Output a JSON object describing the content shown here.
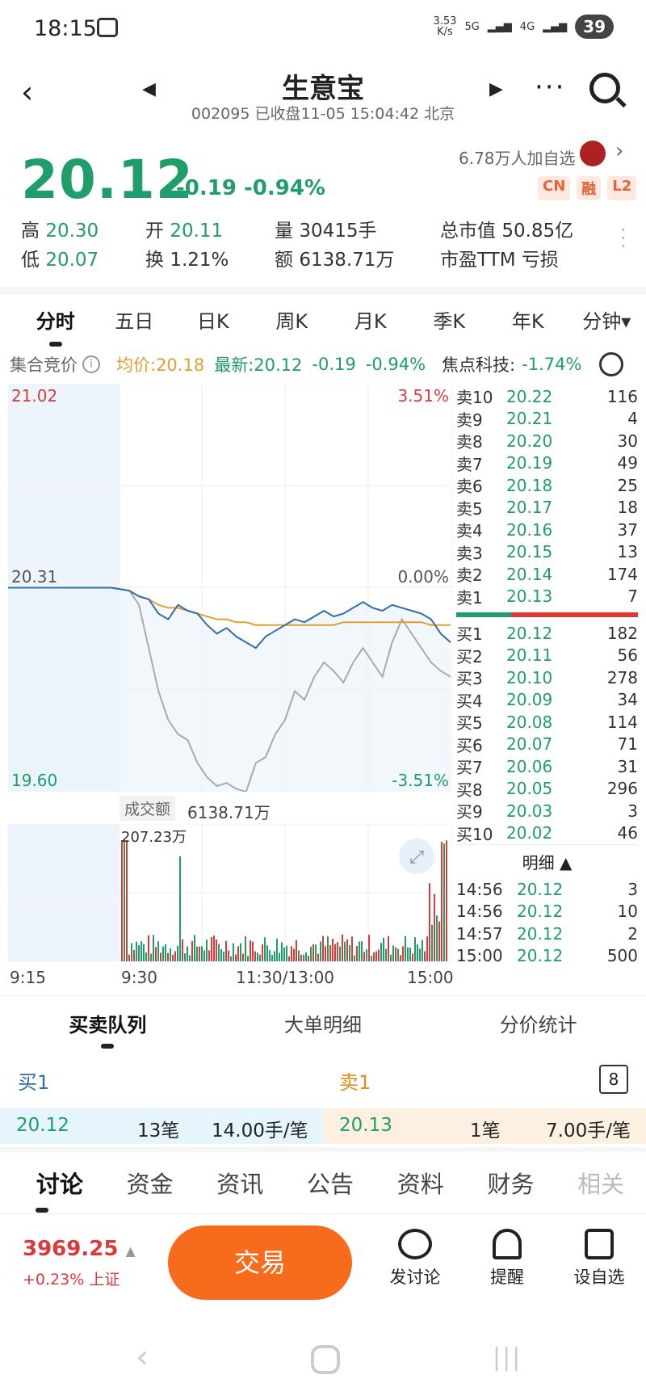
{
  "status": {
    "time": "18:15",
    "speed": "3.53\nK/s",
    "net1": "5G",
    "net2": "4G",
    "battery": "39"
  },
  "header": {
    "title": "生意宝",
    "subtitle": "002095 已收盘11-05 15:04:42 北京"
  },
  "quote": {
    "price": "20.12",
    "change": "-0.19 -0.94%",
    "followers": "6.78万人加自选",
    "badges": [
      "CN",
      "融",
      "L2"
    ],
    "stats": [
      {
        "k": "高",
        "v": "20.30"
      },
      {
        "k": "开",
        "v": "20.11"
      },
      {
        "k": "量",
        "v": "30415手"
      },
      {
        "k": "总市值",
        "v": "50.85亿"
      },
      {
        "k": "低",
        "v": "20.07"
      },
      {
        "k": "换",
        "v": "1.21%"
      },
      {
        "k": "额",
        "v": "6138.71万"
      },
      {
        "k": "市盈TTM",
        "v": "亏损"
      }
    ]
  },
  "tabs": [
    "分时",
    "五日",
    "日K",
    "周K",
    "月K",
    "季K",
    "年K",
    "分钟▾"
  ],
  "info": {
    "auction": "集合竞价",
    "avg": "均价:20.18",
    "latest": "最新:20.12",
    "chg": "-0.19",
    "pct": "-0.94%",
    "sector": "焦点科技:",
    "sector_pct": "-1.74%"
  },
  "chart": {
    "top": "21.02",
    "top_pct": "3.51%",
    "mid": "20.31",
    "mid_pct": "0.00%",
    "bottom": "19.60",
    "bottom_pct": "-3.51%",
    "vol_label": "成交额",
    "vol_total": "6138.71万",
    "vol_max": "207.23万",
    "times": [
      "9:15",
      "9:30",
      "11:30/13:00",
      "15:00"
    ]
  },
  "chart_data": {
    "type": "line",
    "ylim": [
      19.6,
      21.02
    ],
    "series": [
      {
        "values": [
          20.31,
          20.31,
          20.3,
          20.28,
          20.27,
          20.22,
          20.2,
          20.25,
          20.23,
          20.22,
          20.18,
          20.15,
          20.17,
          20.14,
          20.12,
          20.1,
          20.14,
          20.16,
          20.18,
          20.2,
          20.19,
          20.21,
          20.23,
          20.21,
          20.22,
          20.24,
          20.26,
          20.24,
          20.23,
          20.25,
          20.24,
          20.23,
          20.22,
          20.2,
          20.15,
          20.12
        ]
      },
      {
        "values": [
          20.31,
          20.31,
          20.3,
          20.28,
          20.27,
          20.25,
          20.24,
          20.24,
          20.23,
          20.22,
          20.21,
          20.2,
          20.2,
          20.19,
          20.19,
          20.18,
          20.18,
          20.18,
          20.18,
          20.18,
          20.18,
          20.18,
          20.18,
          20.18,
          20.19,
          20.19,
          20.19,
          20.19,
          20.19,
          20.19,
          20.19,
          20.19,
          20.19,
          20.18,
          20.18,
          20.18
        ]
      },
      {
        "values": [
          20.31,
          20.31,
          20.3,
          20.25,
          20.1,
          19.95,
          19.85,
          19.8,
          19.78,
          19.7,
          19.65,
          19.62,
          19.63,
          19.61,
          19.6,
          19.7,
          19.72,
          19.8,
          19.85,
          19.95,
          19.92,
          20.0,
          20.05,
          20.02,
          19.98,
          20.05,
          20.1,
          20.05,
          20.0,
          20.12,
          20.2,
          20.15,
          20.1,
          20.05,
          20.02,
          20.0
        ]
      }
    ]
  },
  "orderbook": {
    "asks": [
      [
        "卖10",
        "20.22",
        "116"
      ],
      [
        "卖9",
        "20.21",
        "4"
      ],
      [
        "卖8",
        "20.20",
        "30"
      ],
      [
        "卖7",
        "20.19",
        "49"
      ],
      [
        "卖6",
        "20.18",
        "25"
      ],
      [
        "卖5",
        "20.17",
        "18"
      ],
      [
        "卖4",
        "20.16",
        "37"
      ],
      [
        "卖3",
        "20.15",
        "13"
      ],
      [
        "卖2",
        "20.14",
        "174"
      ],
      [
        "卖1",
        "20.13",
        "7"
      ]
    ],
    "bids": [
      [
        "买1",
        "20.12",
        "182"
      ],
      [
        "买2",
        "20.11",
        "56"
      ],
      [
        "买3",
        "20.10",
        "278"
      ],
      [
        "买4",
        "20.09",
        "34"
      ],
      [
        "买5",
        "20.08",
        "114"
      ],
      [
        "买6",
        "20.07",
        "71"
      ],
      [
        "买7",
        "20.06",
        "31"
      ],
      [
        "买8",
        "20.05",
        "296"
      ],
      [
        "买9",
        "20.03",
        "3"
      ],
      [
        "买10",
        "20.02",
        "46"
      ]
    ],
    "detail_label": "明细 ▲",
    "ticks": [
      [
        "14:56",
        "20.12",
        "3"
      ],
      [
        "14:56",
        "20.12",
        "10"
      ],
      [
        "14:57",
        "20.12",
        "2"
      ],
      [
        "15:00",
        "20.12",
        "500"
      ]
    ]
  },
  "subtabs": [
    "买卖队列",
    "大单明细",
    "分价统计"
  ],
  "queue": {
    "buy_label": "买1",
    "sell_label": "卖1",
    "count": "8",
    "buy_price": "20.12",
    "buy_orders": "13笔",
    "buy_avg": "14.00手/笔",
    "sell_price": "20.13",
    "sell_orders": "1笔",
    "sell_avg": "7.00手/笔"
  },
  "bottomtabs": [
    "讨论",
    "资金",
    "资讯",
    "公告",
    "资料",
    "财务",
    "相关"
  ],
  "footer": {
    "index": "3969.25",
    "index_chg": "+0.23% 上证",
    "trade": "交易",
    "actions": [
      "发讨论",
      "提醒",
      "设自选"
    ]
  },
  "colors": {
    "up": "#d93a3a",
    "down": "#1f9d6b",
    "accent": "#f76b1c",
    "price_line": "#2f6fae",
    "avg_line": "#e0a030"
  }
}
